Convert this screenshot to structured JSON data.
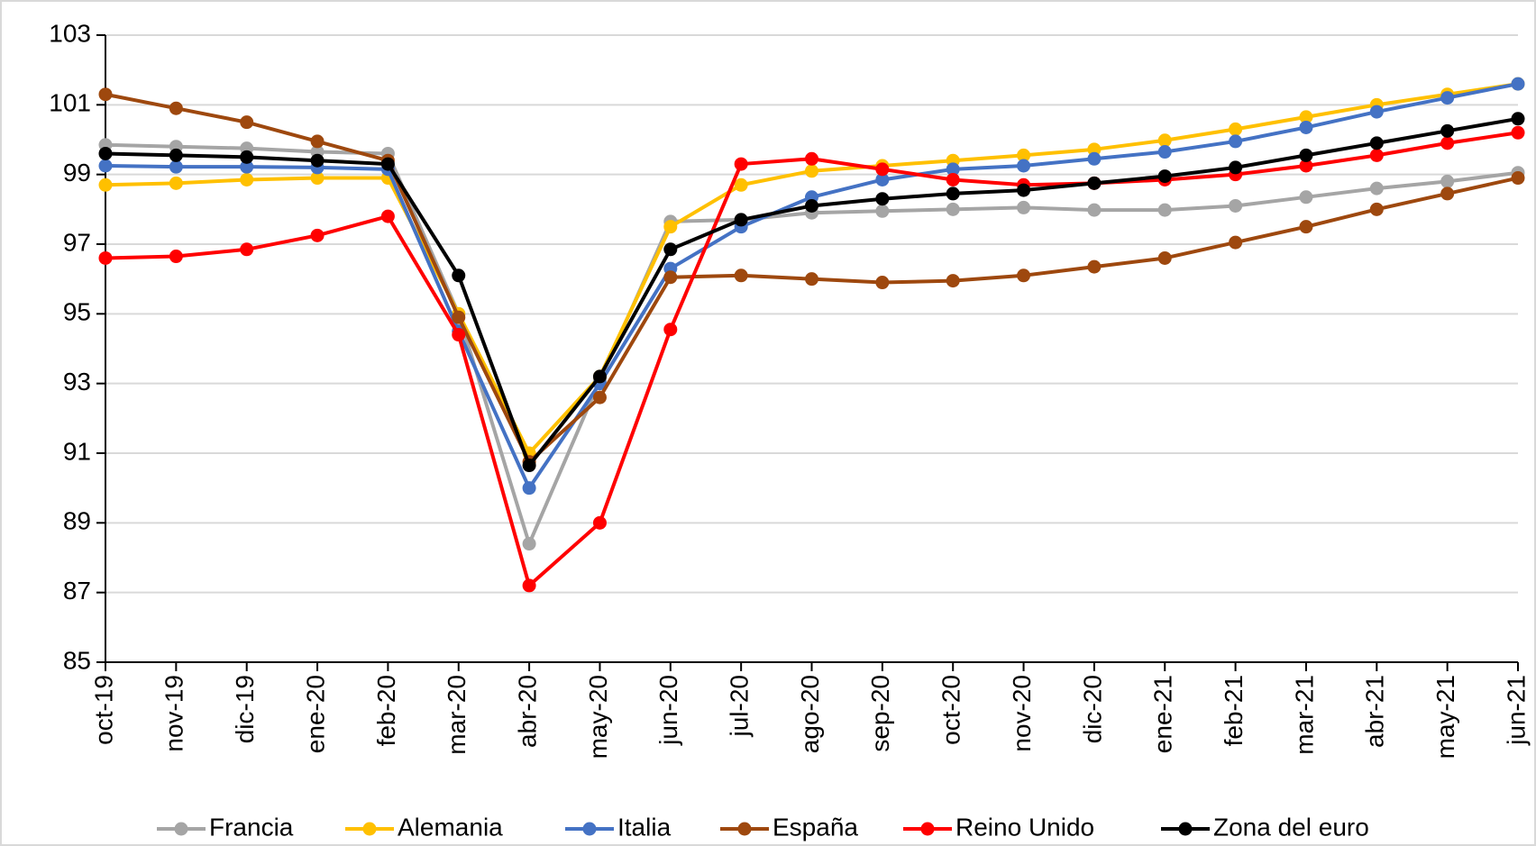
{
  "chart_data": {
    "type": "line",
    "categories": [
      "oct-19",
      "nov-19",
      "dic-19",
      "ene-20",
      "feb-20",
      "mar-20",
      "abr-20",
      "may-20",
      "jun-20",
      "jul-20",
      "ago-20",
      "sep-20",
      "oct-20",
      "nov-20",
      "dic-20",
      "ene-21",
      "feb-21",
      "mar-21",
      "abr-21",
      "may-21",
      "jun-21"
    ],
    "series": [
      {
        "name": "Francia",
        "color": "#a5a5a5",
        "values": [
          99.85,
          99.8,
          99.75,
          99.65,
          99.6,
          95.0,
          88.4,
          93.1,
          97.65,
          97.7,
          97.9,
          97.95,
          98.0,
          98.05,
          97.98,
          97.98,
          98.1,
          98.35,
          98.6,
          98.8,
          99.05
        ]
      },
      {
        "name": "Alemania",
        "color": "#ffc000",
        "values": [
          98.7,
          98.75,
          98.85,
          98.9,
          98.9,
          95.0,
          91.0,
          93.2,
          97.5,
          98.7,
          99.1,
          99.25,
          99.4,
          99.55,
          99.72,
          99.98,
          100.3,
          100.65,
          101.0,
          101.3,
          101.6
        ]
      },
      {
        "name": "Italia",
        "color": "#4472c4",
        "values": [
          99.25,
          99.22,
          99.22,
          99.2,
          99.15,
          94.5,
          90.0,
          93.0,
          96.3,
          97.5,
          98.35,
          98.85,
          99.15,
          99.25,
          99.45,
          99.65,
          99.95,
          100.35,
          100.8,
          101.2,
          101.6
        ]
      },
      {
        "name": "España",
        "color": "#9e480e",
        "values": [
          101.3,
          100.9,
          100.5,
          99.95,
          99.4,
          94.9,
          90.75,
          92.6,
          96.05,
          96.1,
          96.0,
          95.9,
          95.95,
          96.1,
          96.35,
          96.6,
          97.05,
          97.5,
          98.0,
          98.45,
          98.9
        ]
      },
      {
        "name": "Reino Unido",
        "color": "#ff0000",
        "values": [
          96.6,
          96.65,
          96.85,
          97.25,
          97.8,
          94.4,
          87.2,
          89.0,
          94.55,
          99.3,
          99.45,
          99.15,
          98.85,
          98.7,
          98.75,
          98.85,
          99.0,
          99.25,
          99.55,
          99.9,
          100.2
        ]
      },
      {
        "name": "Zona del euro",
        "color": "#000000",
        "values": [
          99.6,
          99.55,
          99.5,
          99.4,
          99.3,
          96.1,
          90.65,
          93.2,
          96.85,
          97.7,
          98.1,
          98.3,
          98.45,
          98.55,
          98.75,
          98.95,
          99.2,
          99.55,
          99.9,
          100.25,
          100.6
        ]
      }
    ],
    "ylim": [
      85,
      103
    ],
    "yticks": [
      85,
      87,
      89,
      91,
      93,
      95,
      97,
      99,
      101,
      103
    ],
    "grid": true,
    "legend": "bottom"
  }
}
